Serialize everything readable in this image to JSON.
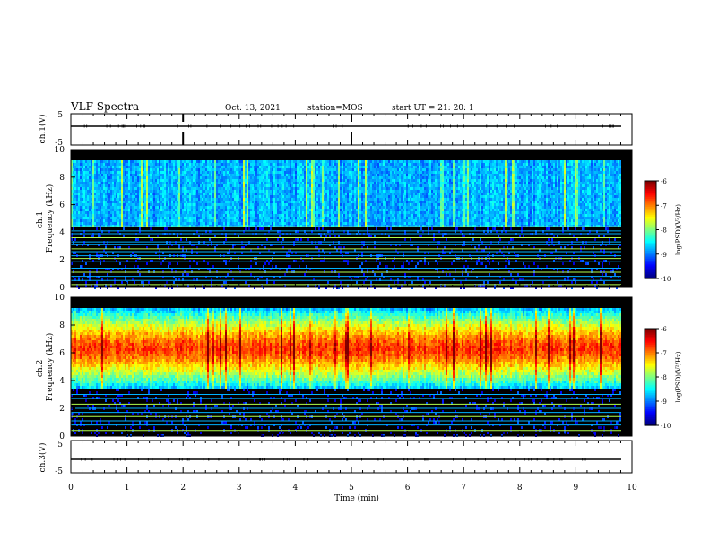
{
  "header": {
    "title": "VLF Spectra",
    "date": "Oct. 13, 2021",
    "station": "station=MOS",
    "start_ut": "start UT =  21: 20: 1"
  },
  "chart_data": [
    {
      "type": "line",
      "panel": "ch1-waveform",
      "ylabel": "ch.1(V)",
      "ylim": [
        -5,
        5
      ],
      "yticks": [
        "5",
        "-5"
      ],
      "x": [
        0,
        10
      ],
      "series": [
        {
          "values": [
            0,
            0
          ]
        }
      ],
      "xlim": [
        0,
        10
      ],
      "grid": false
    },
    {
      "type": "heatmap",
      "panel": "ch1-spectrogram",
      "ylabel": "ch.1\nFrequency (kHz)",
      "ylim": [
        0,
        10
      ],
      "yticks": [
        "0",
        "2",
        "4",
        "6",
        "8",
        "10"
      ],
      "xlim": [
        0,
        10
      ],
      "bands_khz": [
        {
          "lo": 4.5,
          "hi": 9.3,
          "level": -8.8
        },
        {
          "lo": 0.0,
          "hi": 4.5,
          "level": -9.9
        }
      ],
      "tones_khz": [
        0.2,
        0.5,
        0.8,
        1.1,
        1.4,
        1.9,
        2.1,
        2.3,
        2.6,
        2.8,
        3.1,
        3.3,
        3.6,
        3.9,
        4.1,
        4.4
      ],
      "colorbar": {
        "label": "log(PSD)(V²/Hz)",
        "range": [
          -10,
          -6
        ],
        "ticks": [
          "-6",
          "-7",
          "-8",
          "-9",
          "-10"
        ]
      }
    },
    {
      "type": "heatmap",
      "panel": "ch2-spectrogram",
      "ylabel": "ch.2\nFrequency (kHz)",
      "ylim": [
        0,
        10
      ],
      "yticks": [
        "0",
        "2",
        "4",
        "6",
        "8",
        "10"
      ],
      "xlim": [
        0,
        10
      ],
      "bands_khz": [
        {
          "lo": 3.5,
          "hi": 9.3,
          "center": 6.4,
          "peak_level": -6.7,
          "edge_level": -8.8
        },
        {
          "lo": 0.0,
          "hi": 3.5,
          "level": -9.9
        }
      ],
      "tones_khz": [
        0.4,
        0.8,
        1.1,
        1.4,
        1.7,
        2.0,
        2.3,
        2.7,
        3.0
      ],
      "colorbar": {
        "label": "log(PSD)(V²/Hz)",
        "range": [
          -10,
          -6
        ],
        "ticks": [
          "-6",
          "-7",
          "-8",
          "-9",
          "-10"
        ]
      }
    },
    {
      "type": "line",
      "panel": "ch3-waveform",
      "ylabel": "ch.3(V)",
      "ylim": [
        -5,
        5
      ],
      "yticks": [
        "5",
        "-5"
      ],
      "x": [
        0,
        10
      ],
      "series": [
        {
          "values": [
            0,
            0
          ]
        }
      ],
      "xlim": [
        0,
        10
      ],
      "xlabel": "Time  (min)",
      "xticks": [
        "0",
        "1",
        "2",
        "3",
        "4",
        "5",
        "6",
        "7",
        "8",
        "9",
        "10"
      ],
      "grid": false
    }
  ]
}
